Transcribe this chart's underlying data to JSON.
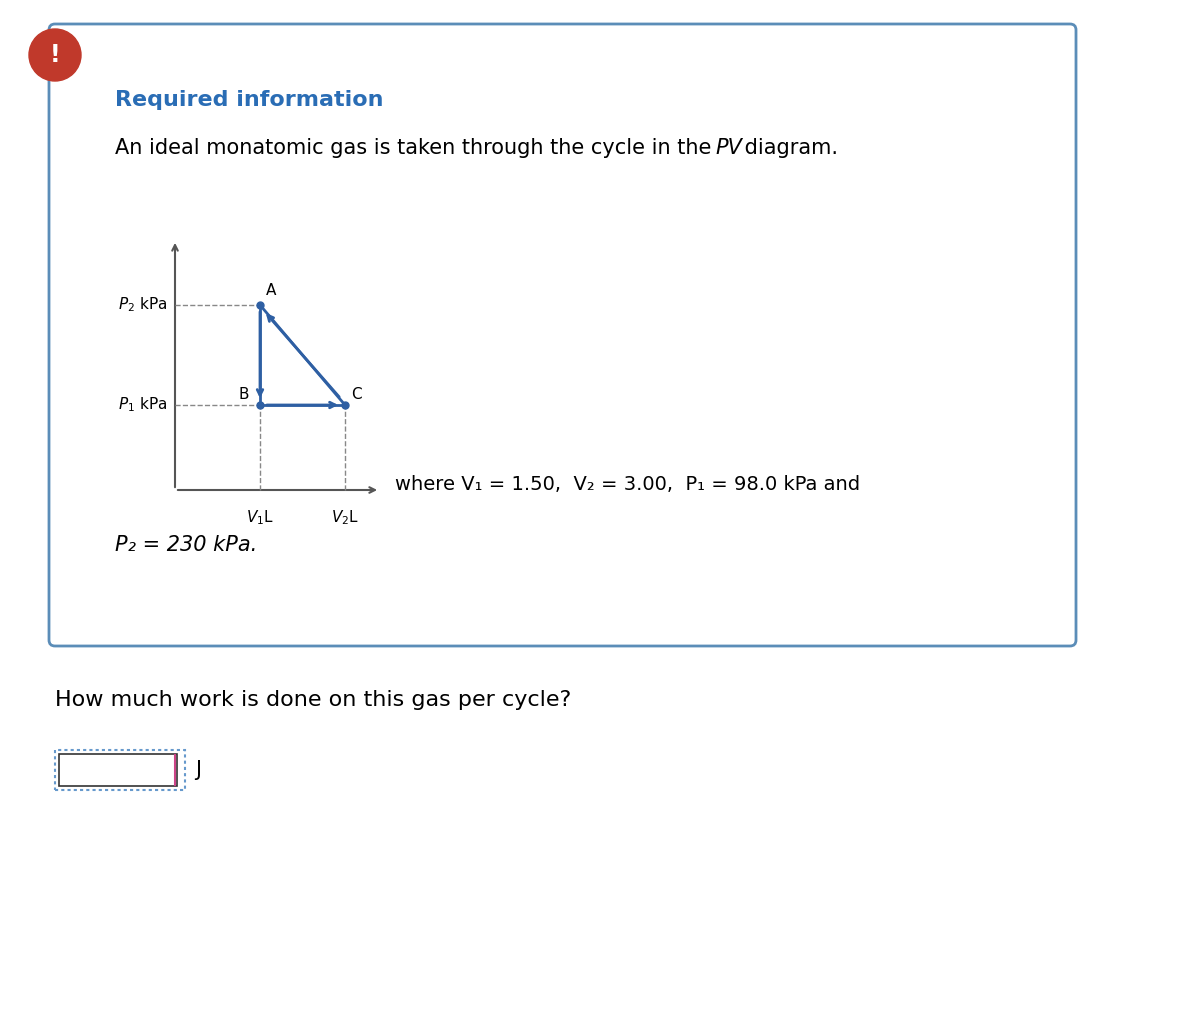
{
  "bg_color": "#ffffff",
  "card_bg": "#ffffff",
  "card_border_color": "#5b8db8",
  "warning_circle_color": "#c0392b",
  "warning_text": "!",
  "required_info_text": "Required information",
  "required_info_color": "#2a6db5",
  "description_text": "An ideal monatomic gas is taken through the cycle in the ",
  "pv_italic": "PV",
  "description_text2": " diagram.",
  "diagram_color": "#2e5fa3",
  "axis_color": "#555555",
  "dashed_color": "#888888",
  "point_A_label": "A",
  "point_B_label": "B",
  "point_C_label": "C",
  "where_text": "where V₁ = 1.50,  V₂ = 3.00,  P₁ = 98.0 kPa and",
  "P2_text": "P₂ = 230 kPa.",
  "question_text": "How much work is done on this gas per cycle?",
  "input_box_text": "J",
  "font_size_title": 16,
  "font_size_body": 15,
  "font_size_diagram": 11
}
